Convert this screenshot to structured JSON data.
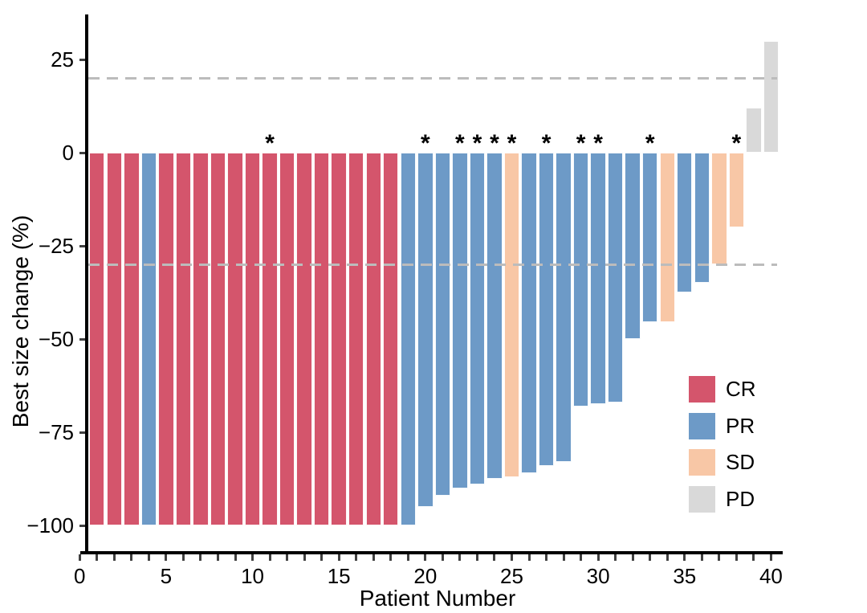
{
  "figure": {
    "background": "#ffffff",
    "spine_color": "#000000",
    "tick_color": "#404040",
    "text_color": "#000000",
    "dash_color": "#bcbcbc"
  },
  "chart_data": {
    "type": "bar",
    "subtype": "waterfall",
    "title": "",
    "xlabel": "Patient Number",
    "ylabel": "Best size change (%)",
    "xlim": [
      0,
      40.5
    ],
    "ylim": [
      -107,
      37
    ],
    "x_tick_labels": [
      0,
      5,
      10,
      15,
      20,
      25,
      30,
      35,
      40
    ],
    "x_minor_tick_every": 1,
    "y_tick_values": [
      25,
      0,
      -25,
      -50,
      -75,
      -100
    ],
    "y_tick_labels": [
      "25",
      "0",
      "−25",
      "−50",
      "−75",
      "−100"
    ],
    "grid": false,
    "reference_lines": [
      {
        "y": 20,
        "style": "dashed"
      },
      {
        "y": -30,
        "style": "dashed"
      }
    ],
    "annotation_symbol": "*",
    "legend": {
      "position": "inside-right-lower",
      "entries": [
        {
          "label": "CR",
          "color": "#d4556c"
        },
        {
          "label": "PR",
          "color": "#6d9ac7"
        },
        {
          "label": "SD",
          "color": "#f8c7a6"
        },
        {
          "label": "PD",
          "color": "#d9d9d9"
        }
      ]
    },
    "patients": [
      {
        "patient": 1,
        "value": -100,
        "response": "CR",
        "star": false
      },
      {
        "patient": 2,
        "value": -100,
        "response": "CR",
        "star": false
      },
      {
        "patient": 3,
        "value": -100,
        "response": "CR",
        "star": false
      },
      {
        "patient": 4,
        "value": -100,
        "response": "PR",
        "star": false
      },
      {
        "patient": 5,
        "value": -100,
        "response": "CR",
        "star": false
      },
      {
        "patient": 6,
        "value": -100,
        "response": "CR",
        "star": false
      },
      {
        "patient": 7,
        "value": -100,
        "response": "CR",
        "star": false
      },
      {
        "patient": 8,
        "value": -100,
        "response": "CR",
        "star": false
      },
      {
        "patient": 9,
        "value": -100,
        "response": "CR",
        "star": false
      },
      {
        "patient": 10,
        "value": -100,
        "response": "CR",
        "star": false
      },
      {
        "patient": 11,
        "value": -100,
        "response": "CR",
        "star": true
      },
      {
        "patient": 12,
        "value": -100,
        "response": "CR",
        "star": false
      },
      {
        "patient": 13,
        "value": -100,
        "response": "CR",
        "star": false
      },
      {
        "patient": 14,
        "value": -100,
        "response": "CR",
        "star": false
      },
      {
        "patient": 15,
        "value": -100,
        "response": "CR",
        "star": false
      },
      {
        "patient": 16,
        "value": -100,
        "response": "CR",
        "star": false
      },
      {
        "patient": 17,
        "value": -100,
        "response": "CR",
        "star": false
      },
      {
        "patient": 18,
        "value": -100,
        "response": "CR",
        "star": false
      },
      {
        "patient": 19,
        "value": -100,
        "response": "PR",
        "star": false
      },
      {
        "patient": 20,
        "value": -95,
        "response": "PR",
        "star": true
      },
      {
        "patient": 21,
        "value": -92,
        "response": "PR",
        "star": false
      },
      {
        "patient": 22,
        "value": -90,
        "response": "PR",
        "star": true
      },
      {
        "patient": 23,
        "value": -89,
        "response": "PR",
        "star": true
      },
      {
        "patient": 24,
        "value": -87.5,
        "response": "PR",
        "star": true
      },
      {
        "patient": 25,
        "value": -87,
        "response": "SD",
        "star": true
      },
      {
        "patient": 26,
        "value": -86,
        "response": "PR",
        "star": false
      },
      {
        "patient": 27,
        "value": -84,
        "response": "PR",
        "star": true
      },
      {
        "patient": 28,
        "value": -83,
        "response": "PR",
        "star": false
      },
      {
        "patient": 29,
        "value": -68,
        "response": "PR",
        "star": true
      },
      {
        "patient": 30,
        "value": -67.5,
        "response": "PR",
        "star": true
      },
      {
        "patient": 31,
        "value": -67,
        "response": "PR",
        "star": false
      },
      {
        "patient": 32,
        "value": -50,
        "response": "PR",
        "star": false
      },
      {
        "patient": 33,
        "value": -45.5,
        "response": "PR",
        "star": true
      },
      {
        "patient": 34,
        "value": -45.5,
        "response": "SD",
        "star": false
      },
      {
        "patient": 35,
        "value": -37.5,
        "response": "PR",
        "star": false
      },
      {
        "patient": 36,
        "value": -35,
        "response": "PR",
        "star": false
      },
      {
        "patient": 37,
        "value": -30,
        "response": "SD",
        "star": false
      },
      {
        "patient": 38,
        "value": -20,
        "response": "SD",
        "star": true
      },
      {
        "patient": 39,
        "value": 12,
        "response": "PD",
        "star": false
      },
      {
        "patient": 40,
        "value": 30,
        "response": "PD",
        "star": false
      }
    ]
  }
}
